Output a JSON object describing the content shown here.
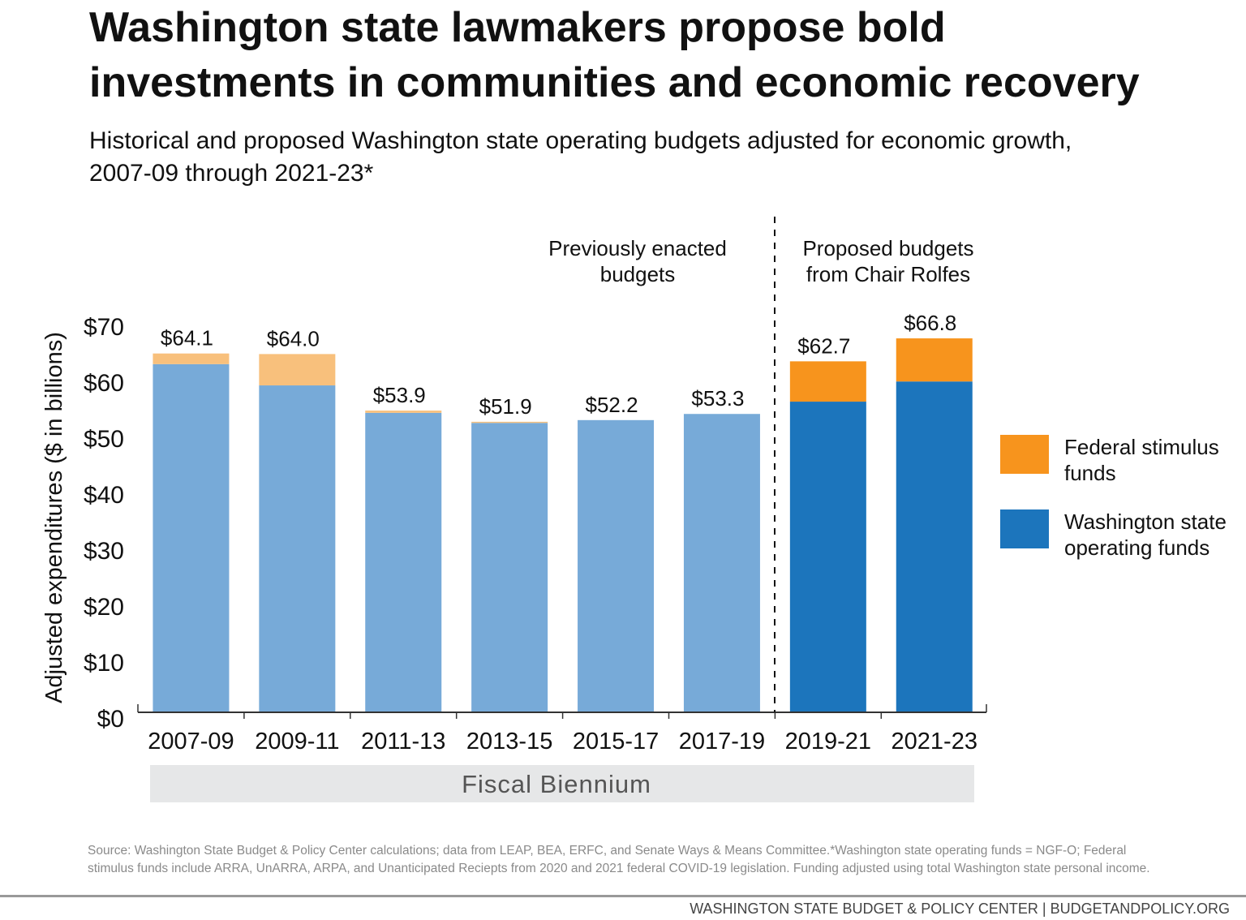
{
  "title_line1": "Washington state lawmakers propose bold",
  "title_line2": "investments in communities and economic recovery",
  "subtitle_line1": "Historical and proposed Washington state operating budgets adjusted for economic growth,",
  "subtitle_line2": "2007-09 through 2021-23*",
  "source_line1": "Source: Washington State Budget & Policy Center calculations; data from LEAP, BEA, ERFC, and Senate Ways & Means Committee.*Washington state operating funds = NGF-O; Federal",
  "source_line2": "stimulus funds include ARRA, UnARRA, ARPA, and Unanticipated Reciepts from 2020 and 2021 federal COVID-19 legislation. Funding adjusted using total Washington state personal income.",
  "footer": "WASHINGTON STATE BUDGET & POLICY CENTER | BUDGETANDPOLICY.ORG",
  "chart_data": {
    "type": "bar",
    "stacked": true,
    "categories": [
      "2007-09",
      "2009-11",
      "2011-13",
      "2013-15",
      "2015-17",
      "2017-19",
      "2019-21",
      "2021-23"
    ],
    "series": [
      {
        "name": "Washington state operating funds",
        "values": [
          62.2,
          58.4,
          53.5,
          51.7,
          52.2,
          53.3,
          55.5,
          59.1
        ]
      },
      {
        "name": "Federal stimulus funds",
        "values": [
          1.9,
          5.6,
          0.4,
          0.2,
          0,
          0,
          7.2,
          7.7
        ]
      }
    ],
    "totals_labels": [
      "$64.1",
      "$64.0",
      "$53.9",
      "$51.9",
      "$52.2",
      "$53.3",
      "$62.7",
      "$66.8"
    ],
    "proposed_from_index": 6,
    "colors": {
      "enacted_state": "#77aad8",
      "enacted_federal": "#f8c07c",
      "proposed_state": "#1c75bc",
      "proposed_federal": "#f7941d"
    },
    "annotations": {
      "enacted": [
        "Previously enacted",
        "budgets"
      ],
      "proposed": [
        "Proposed budgets",
        "from Chair Rolfes"
      ]
    },
    "ylabel": "Adjusted expenditures ($ in billions)",
    "xlabel": "Fiscal Biennium",
    "ylim": [
      0,
      70
    ],
    "yticks": [
      "$0",
      "$10",
      "$20",
      "$30",
      "$40",
      "$50",
      "$60",
      "$70"
    ],
    "legend": {
      "position": "right",
      "items": [
        {
          "label": [
            "Federal stimulus",
            "funds"
          ],
          "color": "#f7941d"
        },
        {
          "label": [
            "Washington state",
            "operating funds"
          ],
          "color": "#1c75bc"
        }
      ]
    },
    "grid": false
  }
}
